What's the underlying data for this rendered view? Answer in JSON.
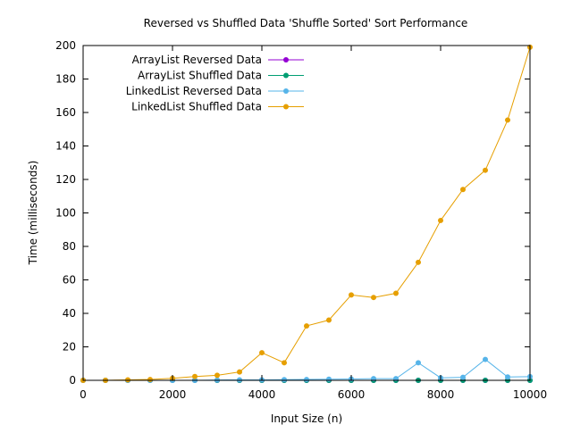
{
  "chart_data": {
    "type": "line",
    "title": "Reversed vs Shuffled Data 'Shuffle Sorted' Sort Performance",
    "xlabel": "Input Size (n)",
    "ylabel": "Time (milliseconds)",
    "xlim": [
      0,
      10000
    ],
    "ylim": [
      0,
      200
    ],
    "xticks": [
      0,
      2000,
      4000,
      6000,
      8000,
      10000
    ],
    "yticks": [
      0,
      20,
      40,
      60,
      80,
      100,
      120,
      140,
      160,
      180,
      200
    ],
    "grid": false,
    "legend_position": "top-left",
    "x": [
      0,
      500,
      1000,
      1500,
      2000,
      2500,
      3000,
      3500,
      4000,
      4500,
      5000,
      5500,
      6000,
      6500,
      7000,
      7500,
      8000,
      8500,
      9000,
      9500,
      10000
    ],
    "series": [
      {
        "name": "ArrayList Reversed Data",
        "color": "#9400d3",
        "values": [
          0,
          0,
          0,
          0,
          0,
          0,
          0,
          0,
          0,
          0,
          0,
          0,
          0,
          0,
          0,
          0,
          0,
          0,
          0,
          0,
          0
        ]
      },
      {
        "name": "ArrayList Shuffled Data",
        "color": "#009e73",
        "values": [
          0,
          0,
          0,
          0,
          0,
          0,
          0,
          0,
          0,
          0,
          0,
          0,
          0,
          0,
          0,
          0,
          0,
          0,
          0,
          0,
          0
        ]
      },
      {
        "name": "LinkedList Reversed Data",
        "color": "#56b4e9",
        "values": [
          0,
          0,
          0,
          0,
          0,
          0,
          0.2,
          0.3,
          0.3,
          0.4,
          0.5,
          0.7,
          0.8,
          1.0,
          1.0,
          10.5,
          1.5,
          1.8,
          12.5,
          2.0,
          2.2
        ]
      },
      {
        "name": "LinkedList Shuffled Data",
        "color": "#e69f00",
        "values": [
          0,
          0,
          0.3,
          0.5,
          1.2,
          2.3,
          3.0,
          5.0,
          16.5,
          10.5,
          32.5,
          36,
          51,
          49.5,
          52,
          70.5,
          95.5,
          114,
          125.5,
          155.5,
          199
        ]
      }
    ]
  }
}
